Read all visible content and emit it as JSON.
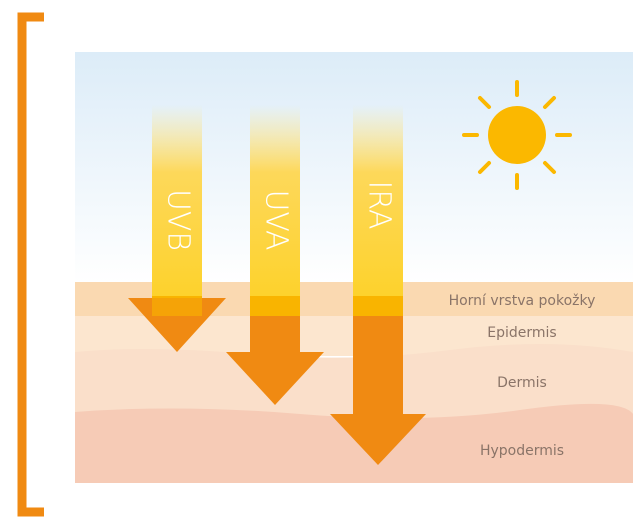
{
  "rays": [
    {
      "label": "UVB"
    },
    {
      "label": "UVA"
    },
    {
      "label": "IRA"
    }
  ],
  "layers": [
    {
      "label": "Horní vrstva pokožky"
    },
    {
      "label": "Epidermis"
    },
    {
      "label": "Dermis"
    },
    {
      "label": "Hypodermis"
    }
  ]
}
